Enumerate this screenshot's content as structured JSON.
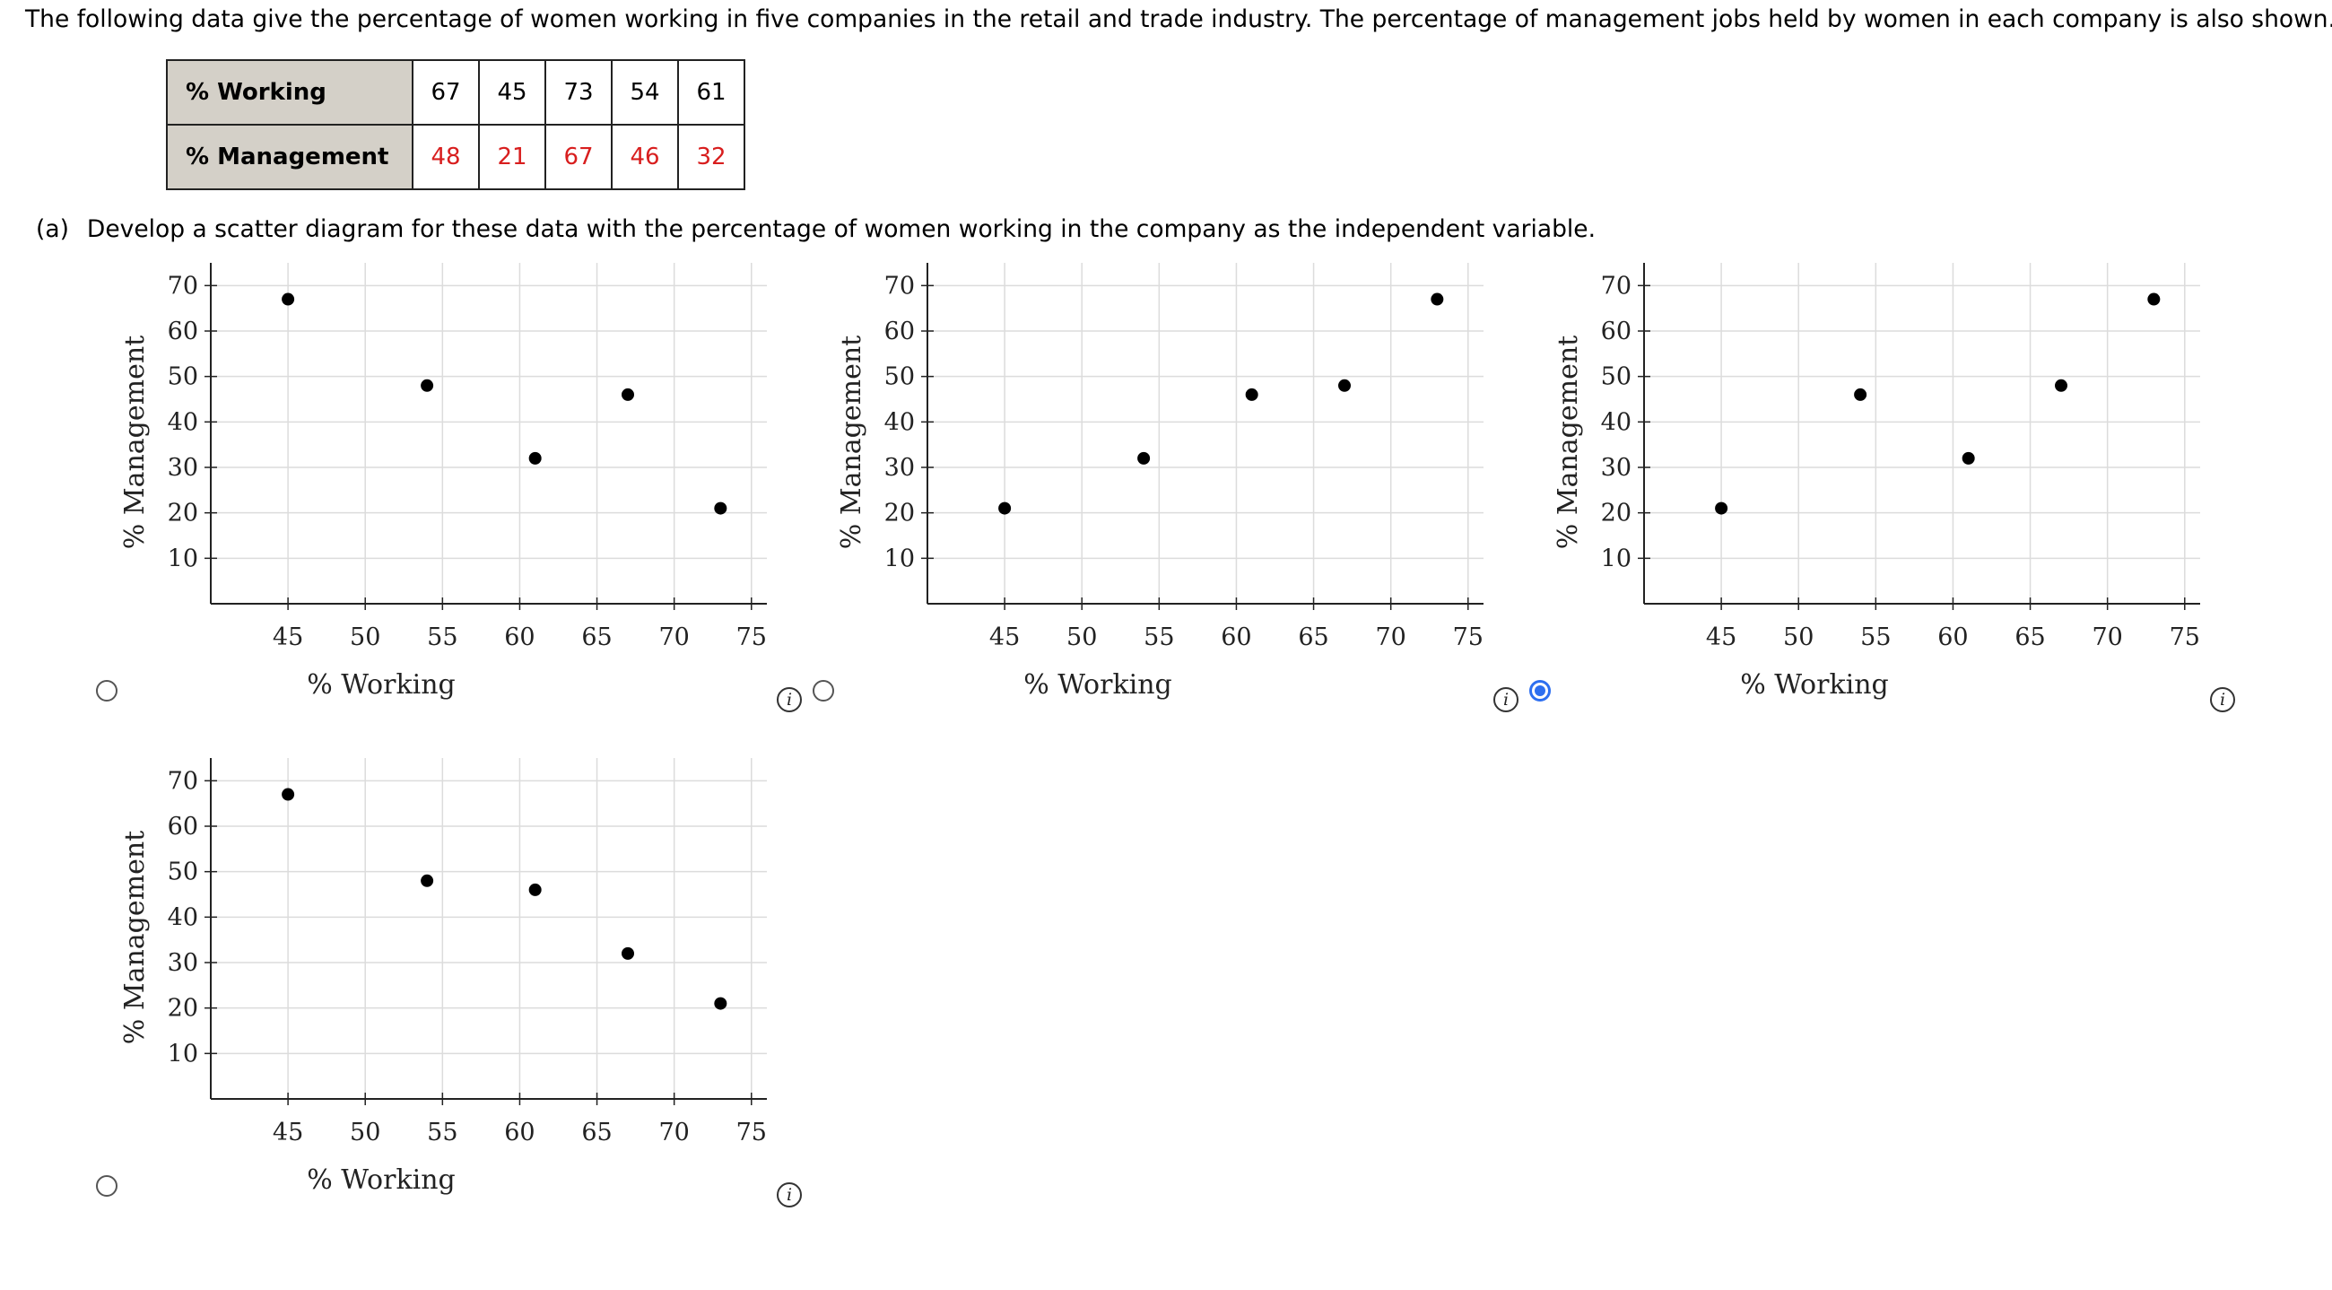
{
  "question": {
    "prompt": "The following data give the percentage of women working in five companies in the retail and trade industry. The percentage of management jobs held by women in each company is also shown.",
    "table": {
      "rows": [
        {
          "header": "% Working",
          "values": [
            "67",
            "45",
            "73",
            "54",
            "61"
          ],
          "color": "#000000"
        },
        {
          "header": "% Management",
          "values": [
            "48",
            "21",
            "67",
            "46",
            "32"
          ],
          "color": "#d81e1e"
        }
      ]
    },
    "part_a": {
      "label": "(a)",
      "text": "Develop a scatter diagram for these data with the percentage of women working in the company as the independent variable."
    }
  },
  "options": [
    {
      "id": "option-1",
      "selected": false,
      "info_symbol": "i"
    },
    {
      "id": "option-2",
      "selected": false,
      "info_symbol": "i"
    },
    {
      "id": "option-3",
      "selected": true,
      "info_symbol": "i"
    },
    {
      "id": "option-4",
      "selected": false,
      "info_symbol": "i"
    }
  ],
  "chart_data": [
    {
      "type": "scatter",
      "xlabel": "% Working",
      "ylabel": "% Management",
      "xlim": [
        40,
        76
      ],
      "ylim": [
        0,
        75
      ],
      "xticks": [
        45,
        50,
        55,
        60,
        65,
        70,
        75
      ],
      "yticks": [
        10,
        20,
        30,
        40,
        50,
        60,
        70
      ],
      "grid": true,
      "points": [
        [
          45,
          67
        ],
        [
          54,
          48
        ],
        [
          61,
          32
        ],
        [
          67,
          46
        ],
        [
          73,
          21
        ]
      ]
    },
    {
      "type": "scatter",
      "xlabel": "% Working",
      "ylabel": "% Management",
      "xlim": [
        40,
        76
      ],
      "ylim": [
        0,
        75
      ],
      "xticks": [
        45,
        50,
        55,
        60,
        65,
        70,
        75
      ],
      "yticks": [
        10,
        20,
        30,
        40,
        50,
        60,
        70
      ],
      "grid": true,
      "points": [
        [
          45,
          21
        ],
        [
          54,
          32
        ],
        [
          61,
          46
        ],
        [
          67,
          48
        ],
        [
          73,
          67
        ]
      ]
    },
    {
      "type": "scatter",
      "xlabel": "% Working",
      "ylabel": "% Management",
      "xlim": [
        40,
        76
      ],
      "ylim": [
        0,
        75
      ],
      "xticks": [
        45,
        50,
        55,
        60,
        65,
        70,
        75
      ],
      "yticks": [
        10,
        20,
        30,
        40,
        50,
        60,
        70
      ],
      "grid": true,
      "points": [
        [
          45,
          21
        ],
        [
          54,
          46
        ],
        [
          61,
          32
        ],
        [
          67,
          48
        ],
        [
          73,
          67
        ]
      ]
    },
    {
      "type": "scatter",
      "xlabel": "% Working",
      "ylabel": "% Management",
      "xlim": [
        40,
        76
      ],
      "ylim": [
        0,
        75
      ],
      "xticks": [
        45,
        50,
        55,
        60,
        65,
        70,
        75
      ],
      "yticks": [
        10,
        20,
        30,
        40,
        50,
        60,
        70
      ],
      "grid": true,
      "points": [
        [
          45,
          67
        ],
        [
          54,
          48
        ],
        [
          61,
          46
        ],
        [
          67,
          32
        ],
        [
          73,
          21
        ]
      ]
    }
  ]
}
